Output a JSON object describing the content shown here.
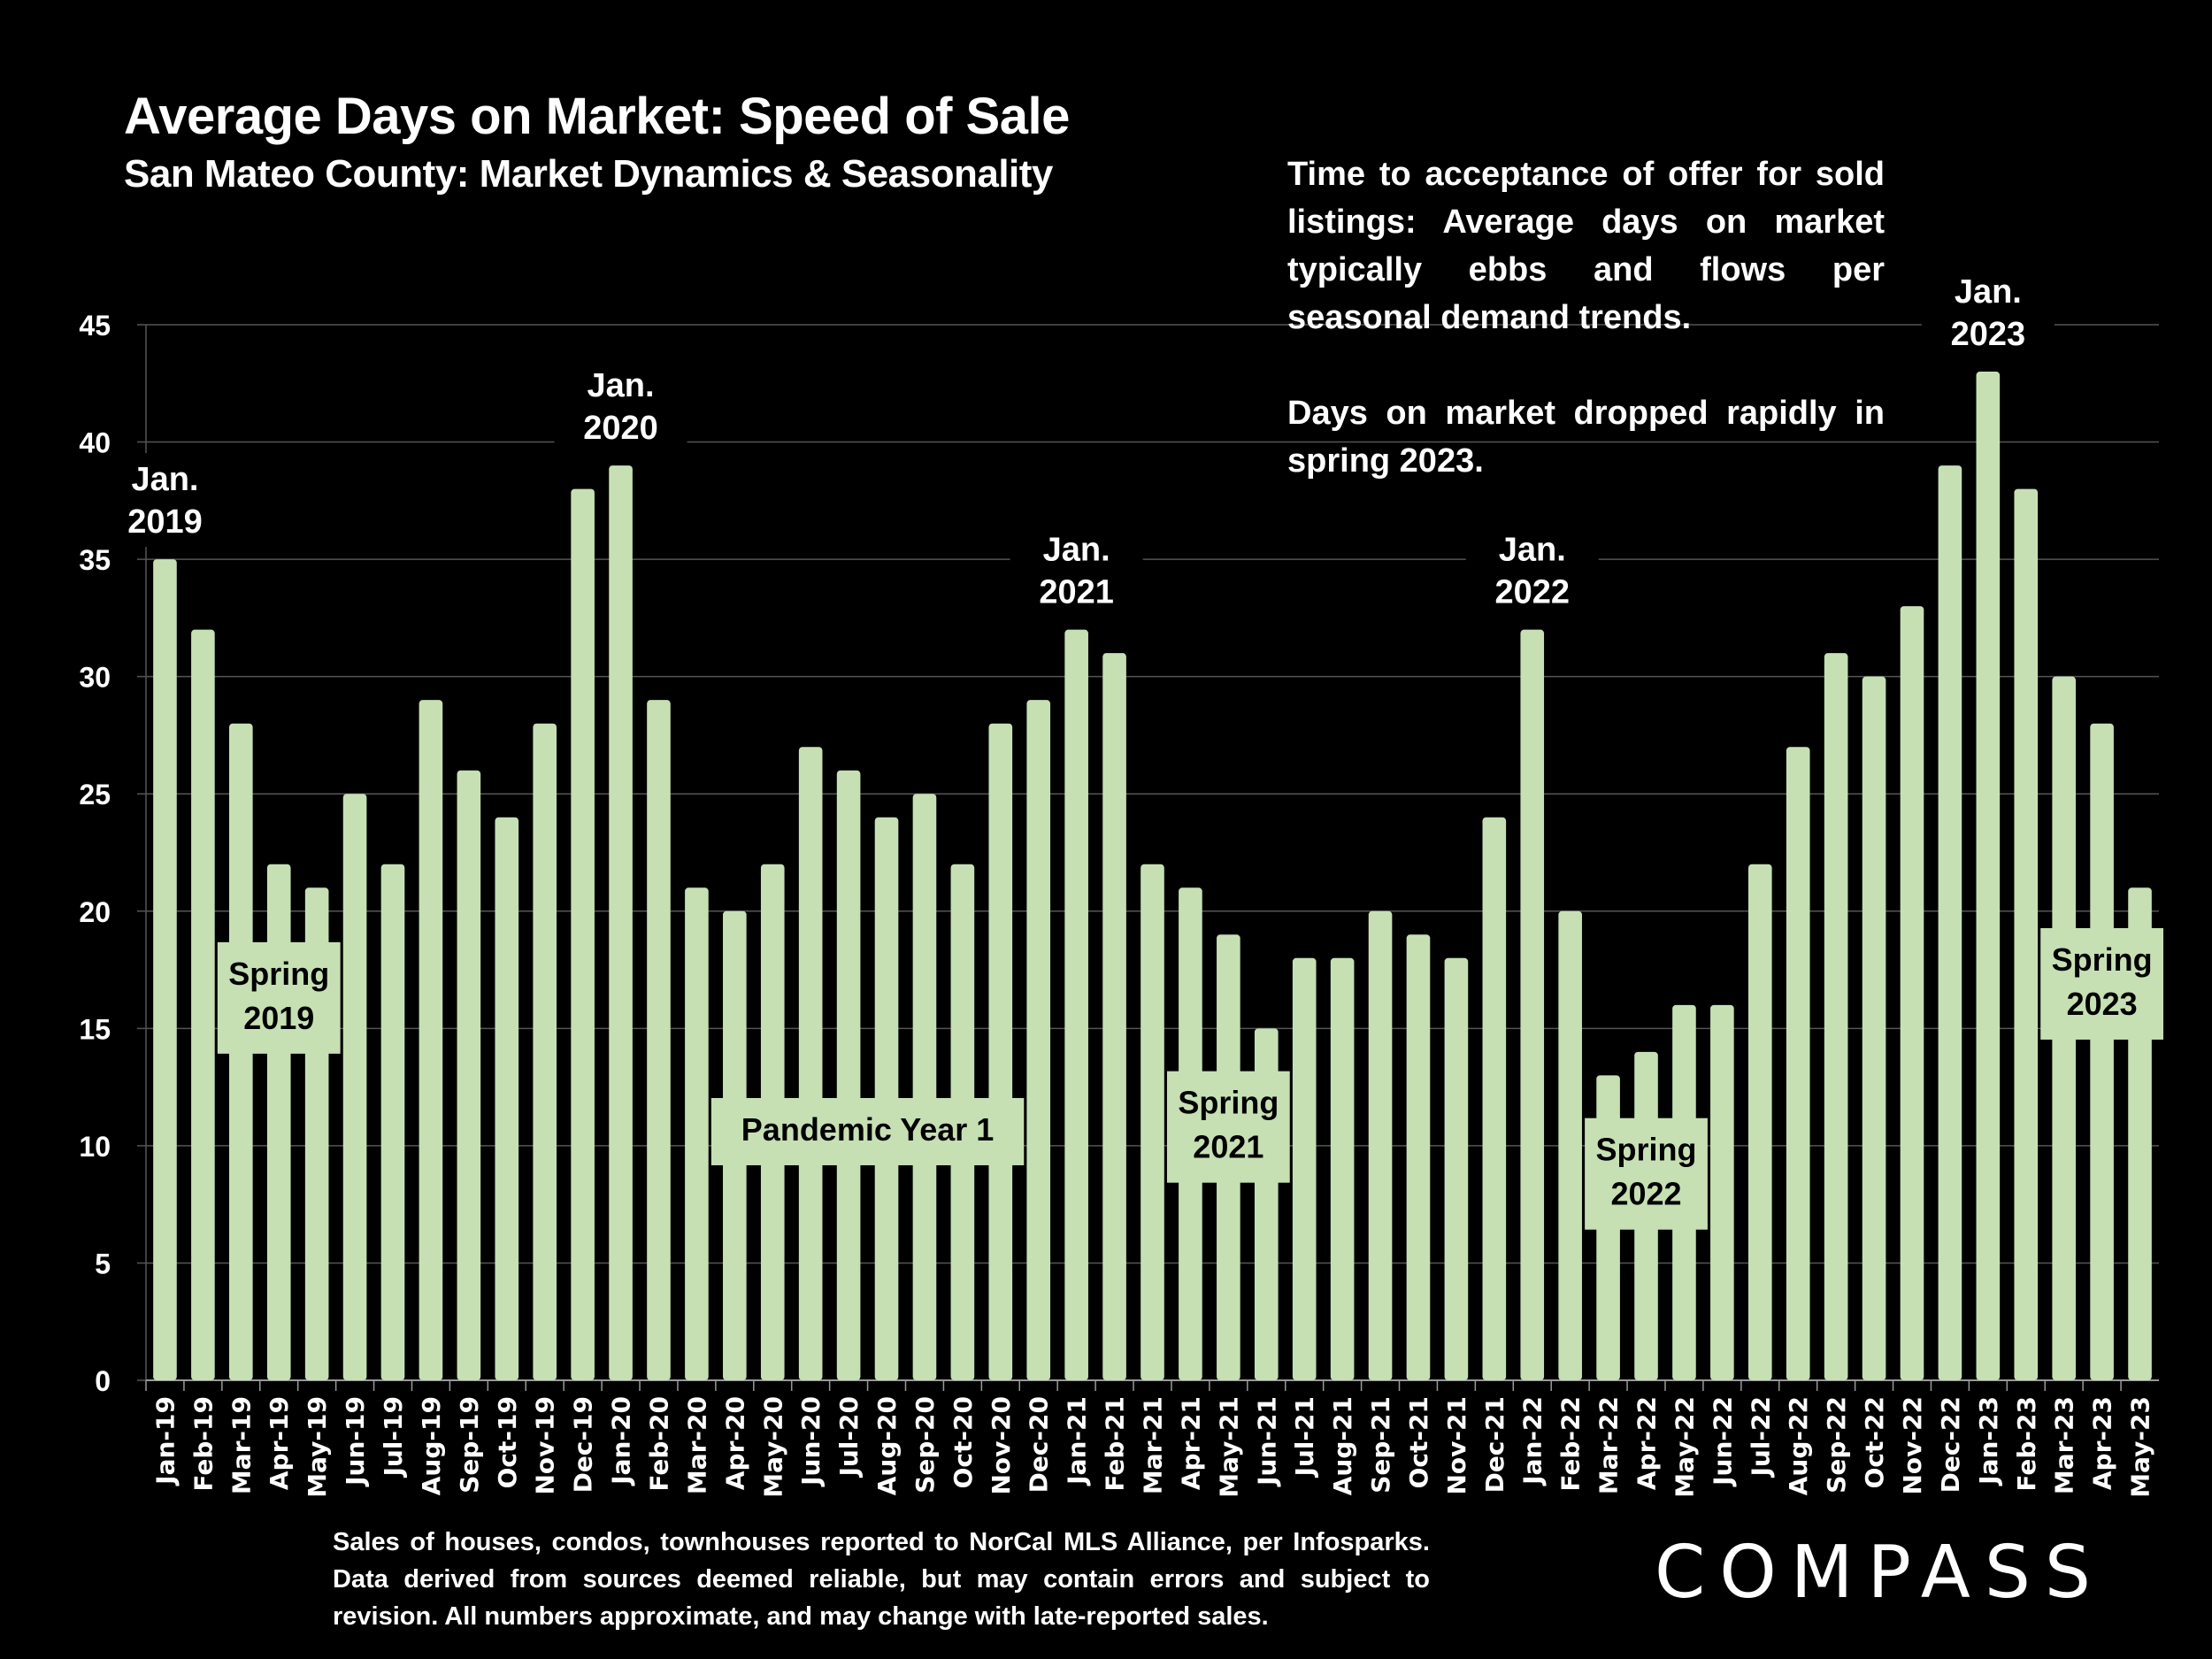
{
  "header": {
    "title": "Average Days on Market:  Speed of Sale",
    "subtitle": "San Mateo County: Market Dynamics & Seasonality"
  },
  "note": {
    "paragraph1": "Time to acceptance of offer for sold listings: Average days on market typically ebbs and flows per seasonal demand trends.",
    "paragraph2": "Days on market dropped rapidly in spring 2023."
  },
  "footer": {
    "disclaimer": "Sales of houses, condos, townhouses reported to NorCal MLS Alliance, per Infosparks. Data derived from sources deemed reliable, but may contain errors and subject to revision. All numbers approximate, and may change with late-reported sales."
  },
  "logo": {
    "text": "COMPASS"
  },
  "colors": {
    "background": "#000000",
    "bar": "#c6e0b4",
    "text": "#ffffff",
    "grid": "#555555",
    "label_box_text": "#000000"
  },
  "chart_data": {
    "type": "bar",
    "title": "Average Days on Market:  Speed of Sale",
    "subtitle": "San Mateo County: Market Dynamics & Seasonality",
    "xlabel": "",
    "ylabel": "",
    "ylim": [
      0,
      45
    ],
    "yticks": [
      0,
      5,
      10,
      15,
      20,
      25,
      30,
      35,
      40,
      45
    ],
    "grid": true,
    "legend": "none",
    "categories": [
      "Jan-19",
      "Feb-19",
      "Mar-19",
      "Apr-19",
      "May-19",
      "Jun-19",
      "Jul-19",
      "Aug-19",
      "Sep-19",
      "Oct-19",
      "Nov-19",
      "Dec-19",
      "Jan-20",
      "Feb-20",
      "Mar-20",
      "Apr-20",
      "May-20",
      "Jun-20",
      "Jul-20",
      "Aug-20",
      "Sep-20",
      "Oct-20",
      "Nov-20",
      "Dec-20",
      "Jan-21",
      "Feb-21",
      "Mar-21",
      "Apr-21",
      "May-21",
      "Jun-21",
      "Jul-21",
      "Aug-21",
      "Sep-21",
      "Oct-21",
      "Nov-21",
      "Dec-21",
      "Jan-22",
      "Feb-22",
      "Mar-22",
      "Apr-22",
      "May-22",
      "Jun-22",
      "Jul-22",
      "Aug-22",
      "Sep-22",
      "Oct-22",
      "Nov-22",
      "Dec-22",
      "Jan-23",
      "Feb-23",
      "Mar-23",
      "Apr-23",
      "May-23"
    ],
    "values": [
      35,
      32,
      28,
      22,
      21,
      25,
      22,
      29,
      26,
      24,
      28,
      38,
      39,
      29,
      21,
      20,
      22,
      27,
      26,
      24,
      25,
      22,
      28,
      29,
      32,
      31,
      22,
      21,
      19,
      15,
      18,
      18,
      20,
      19,
      18,
      24,
      32,
      20,
      13,
      14,
      16,
      16,
      22,
      27,
      31,
      30,
      33,
      39,
      43,
      38,
      30,
      28,
      21
    ],
    "annotations": [
      {
        "type": "top",
        "lines": [
          "Jan.",
          "2019"
        ],
        "bar_index": 0
      },
      {
        "type": "top",
        "lines": [
          "Jan.",
          "2020"
        ],
        "bar_index": 12
      },
      {
        "type": "top",
        "lines": [
          "Jan.",
          "2021"
        ],
        "bar_index": 24
      },
      {
        "type": "top",
        "lines": [
          "Jan.",
          "2022"
        ],
        "bar_index": 36
      },
      {
        "type": "top",
        "lines": [
          "Jan.",
          "2023"
        ],
        "bar_index": 48
      },
      {
        "type": "box",
        "lines": [
          "Spring",
          "2019"
        ],
        "from_index": 2,
        "to_index": 5
      },
      {
        "type": "box",
        "lines": [
          "Pandemic Year 1"
        ],
        "from_index": 15,
        "to_index": 23
      },
      {
        "type": "box",
        "lines": [
          "Spring",
          "2021"
        ],
        "from_index": 27,
        "to_index": 30
      },
      {
        "type": "box",
        "lines": [
          "Spring",
          "2022"
        ],
        "from_index": 38,
        "to_index": 41
      },
      {
        "type": "box",
        "lines": [
          "Spring",
          "2023"
        ],
        "from_index": 50,
        "to_index": 53
      }
    ]
  }
}
